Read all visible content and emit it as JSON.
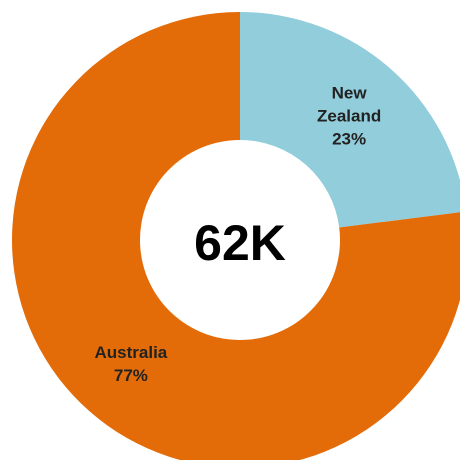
{
  "chart_data": {
    "type": "donut",
    "categories": [
      "New Zealand",
      "Australia"
    ],
    "values": [
      23,
      77
    ],
    "value_labels": [
      "23%",
      "77%"
    ],
    "colors": [
      "#92cddc",
      "#e36c09"
    ],
    "center_label": "62K"
  }
}
